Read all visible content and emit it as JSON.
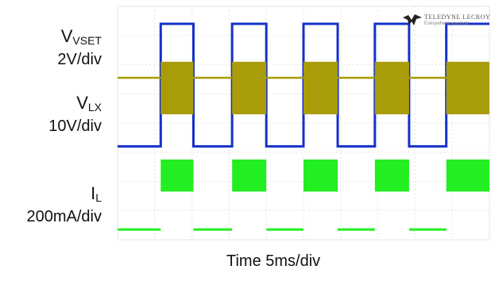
{
  "chart_data": {
    "type": "line",
    "title": "",
    "xlabel": "Time 5ms/div",
    "ylabel": "",
    "grid": true,
    "xlim": [
      0,
      50
    ],
    "x_divisions": 10,
    "y_divisions": 8,
    "series": [
      {
        "name_main": "V",
        "name_sub": "VSET",
        "scale": "2V/div",
        "color": "#1530c8",
        "low_div": 3.2,
        "high_div": 7.4,
        "waveform": "square",
        "transitions": [
          {
            "t": 0.0,
            "level": "low"
          },
          {
            "t": 5.8,
            "level": "high"
          },
          {
            "t": 10.2,
            "level": "low"
          },
          {
            "t": 15.4,
            "level": "high"
          },
          {
            "t": 20.0,
            "level": "low"
          },
          {
            "t": 25.0,
            "level": "high"
          },
          {
            "t": 29.6,
            "level": "low"
          },
          {
            "t": 34.6,
            "level": "high"
          },
          {
            "t": 39.2,
            "level": "low"
          },
          {
            "t": 44.2,
            "level": "high"
          }
        ]
      },
      {
        "name_main": "V",
        "name_sub": "LX",
        "scale": "10V/div",
        "color": "#a89c08",
        "low_div": 5.2,
        "high_div": 4.3,
        "idle_div": 5.55,
        "waveform": "switching-burst",
        "bursts": [
          [
            5.8,
            10.2
          ],
          [
            15.4,
            20.0
          ],
          [
            25.0,
            29.6
          ],
          [
            34.6,
            39.2
          ],
          [
            44.2,
            50.0
          ]
        ]
      },
      {
        "name_main": "I",
        "name_sub": "L",
        "scale": "200mA/div",
        "color": "#22ee22",
        "low_div": 0.35,
        "high_div": 2.75,
        "band_div": 1.1,
        "waveform": "ripple-burst",
        "bursts": [
          [
            5.8,
            10.2
          ],
          [
            15.4,
            20.0
          ],
          [
            25.0,
            29.6
          ],
          [
            34.6,
            39.2
          ],
          [
            44.2,
            50.0
          ]
        ]
      }
    ]
  },
  "logo": {
    "text": "TELEDYNE LECROY",
    "sub": "Everywhere you look"
  }
}
